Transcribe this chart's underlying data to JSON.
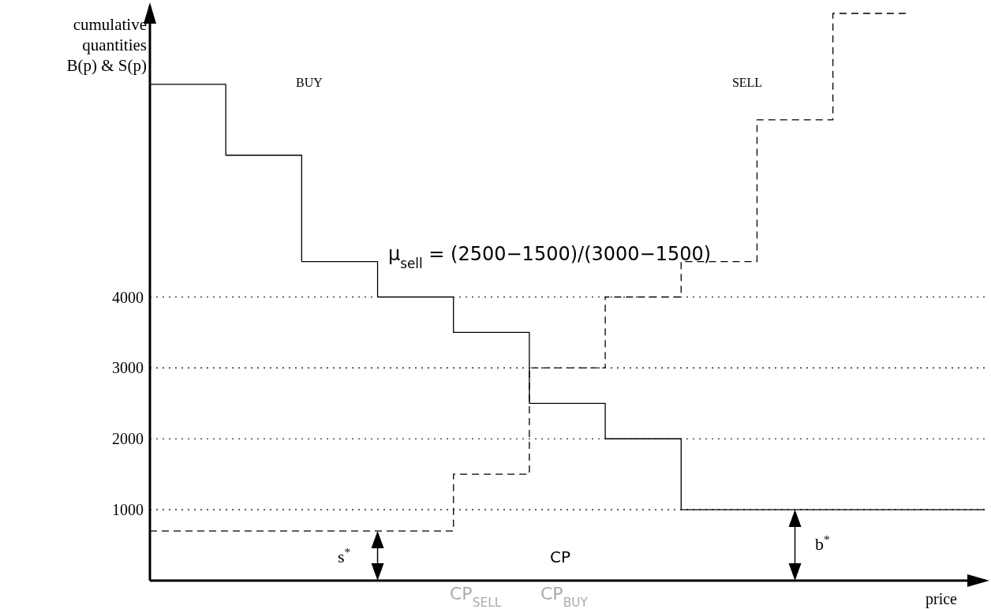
{
  "chart_data": {
    "type": "step",
    "xlabel": "price",
    "ylabel": "cumulative quantities B(p) & S(p)",
    "categories": [
      null,
      null,
      null,
      null,
      null,
      null,
      null,
      null,
      null,
      null,
      null,
      null
    ],
    "series": [
      {
        "color": "#000000",
        "line_style": "solid",
        "values": [
          7000,
          6000,
          4500,
          4000,
          3500,
          2500,
          2000,
          1000,
          1000,
          1000,
          1000,
          1000
        ]
      },
      {
        "color": "#000000",
        "line_style": "dashed",
        "values": [
          700,
          700,
          700,
          700,
          1500,
          3000,
          4000,
          4500,
          6500,
          8000,
          8000,
          null
        ]
      }
    ],
    "ylim": [
      0,
      8100
    ],
    "yticks": [
      1000,
      2000,
      3000,
      4000
    ],
    "tick_labels": "y",
    "marker": "none",
    "ref_lines": [
      {
        "axis": "y",
        "value": 1000,
        "color": "#000000",
        "line_style": "dotted"
      },
      {
        "axis": "y",
        "value": 2000,
        "color": "#000000",
        "line_style": "dotted"
      },
      {
        "axis": "y",
        "value": 3000,
        "color": "#000000",
        "line_style": "dotted"
      },
      {
        "axis": "y",
        "value": 4000,
        "color": "#000000",
        "line_style": "dotted"
      }
    ],
    "annotations": [
      "BUY",
      "SELL",
      "μ$_{sell}$ = (2500−1500)/(3000−1500)",
      "CP",
      "CP$_{SELL}$",
      "CP$_{BUY}$",
      "s$^{*}$",
      "b$^{*}$"
    ]
  }
}
